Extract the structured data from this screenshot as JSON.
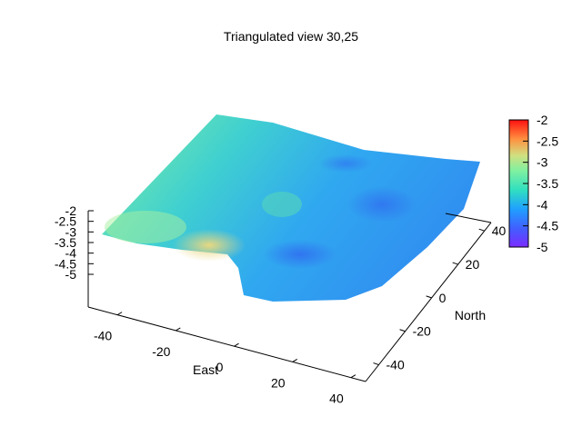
{
  "chart_data": {
    "type": "surface",
    "title": "Triangulated view 30,25",
    "xlabel": "East",
    "ylabel": "North",
    "zlabel": "",
    "xlim": [
      -50,
      45
    ],
    "ylim": [
      -50,
      45
    ],
    "zlim": [
      -5,
      -2
    ],
    "x_ticks": [
      "-40",
      "-20",
      "0",
      "20",
      "40"
    ],
    "y_ticks": [
      "-40",
      "-20",
      "0",
      "20",
      "40"
    ],
    "z_ticks": [
      "-2",
      "-2.5",
      "-3",
      "-3.5",
      "-4",
      "-4.5",
      "-5"
    ],
    "colorbar_ticks": [
      "-2",
      "-2.5",
      "-3",
      "-3.5",
      "-4",
      "-4.5",
      "-5"
    ],
    "colorbar_range": [
      -5,
      -2
    ],
    "colormap": [
      "#8a2be2",
      "#4169e1",
      "#1e90ff",
      "#00ced1",
      "#40e0d0",
      "#98fb98",
      "#f0e68c",
      "#ffa500",
      "#ff4500",
      "#ff0000"
    ],
    "grid": false,
    "legend": "colorbar-right"
  }
}
